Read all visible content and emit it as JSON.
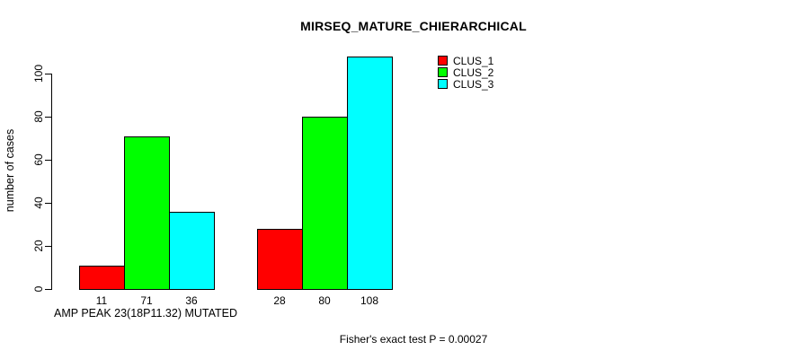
{
  "chart_data": {
    "type": "bar",
    "title": "MIRSEQ_MATURE_CHIERARCHICAL",
    "xlabel": "AMP PEAK 23(18P11.32) MUTATED",
    "ylabel": "number of cases",
    "annotation": "Fisher's exact test P = 0.00027",
    "ylim": [
      0,
      100
    ],
    "y_ticks": [
      0,
      20,
      40,
      60,
      80,
      100
    ],
    "grid": false,
    "legend_position": "top-right-inside",
    "series": [
      {
        "name": "CLUS_1",
        "color": "#ff0000",
        "values": [
          11,
          28
        ]
      },
      {
        "name": "CLUS_2",
        "color": "#00ff00",
        "values": [
          71,
          80
        ]
      },
      {
        "name": "CLUS_3",
        "color": "#00ffff",
        "values": [
          36,
          108
        ]
      }
    ]
  }
}
